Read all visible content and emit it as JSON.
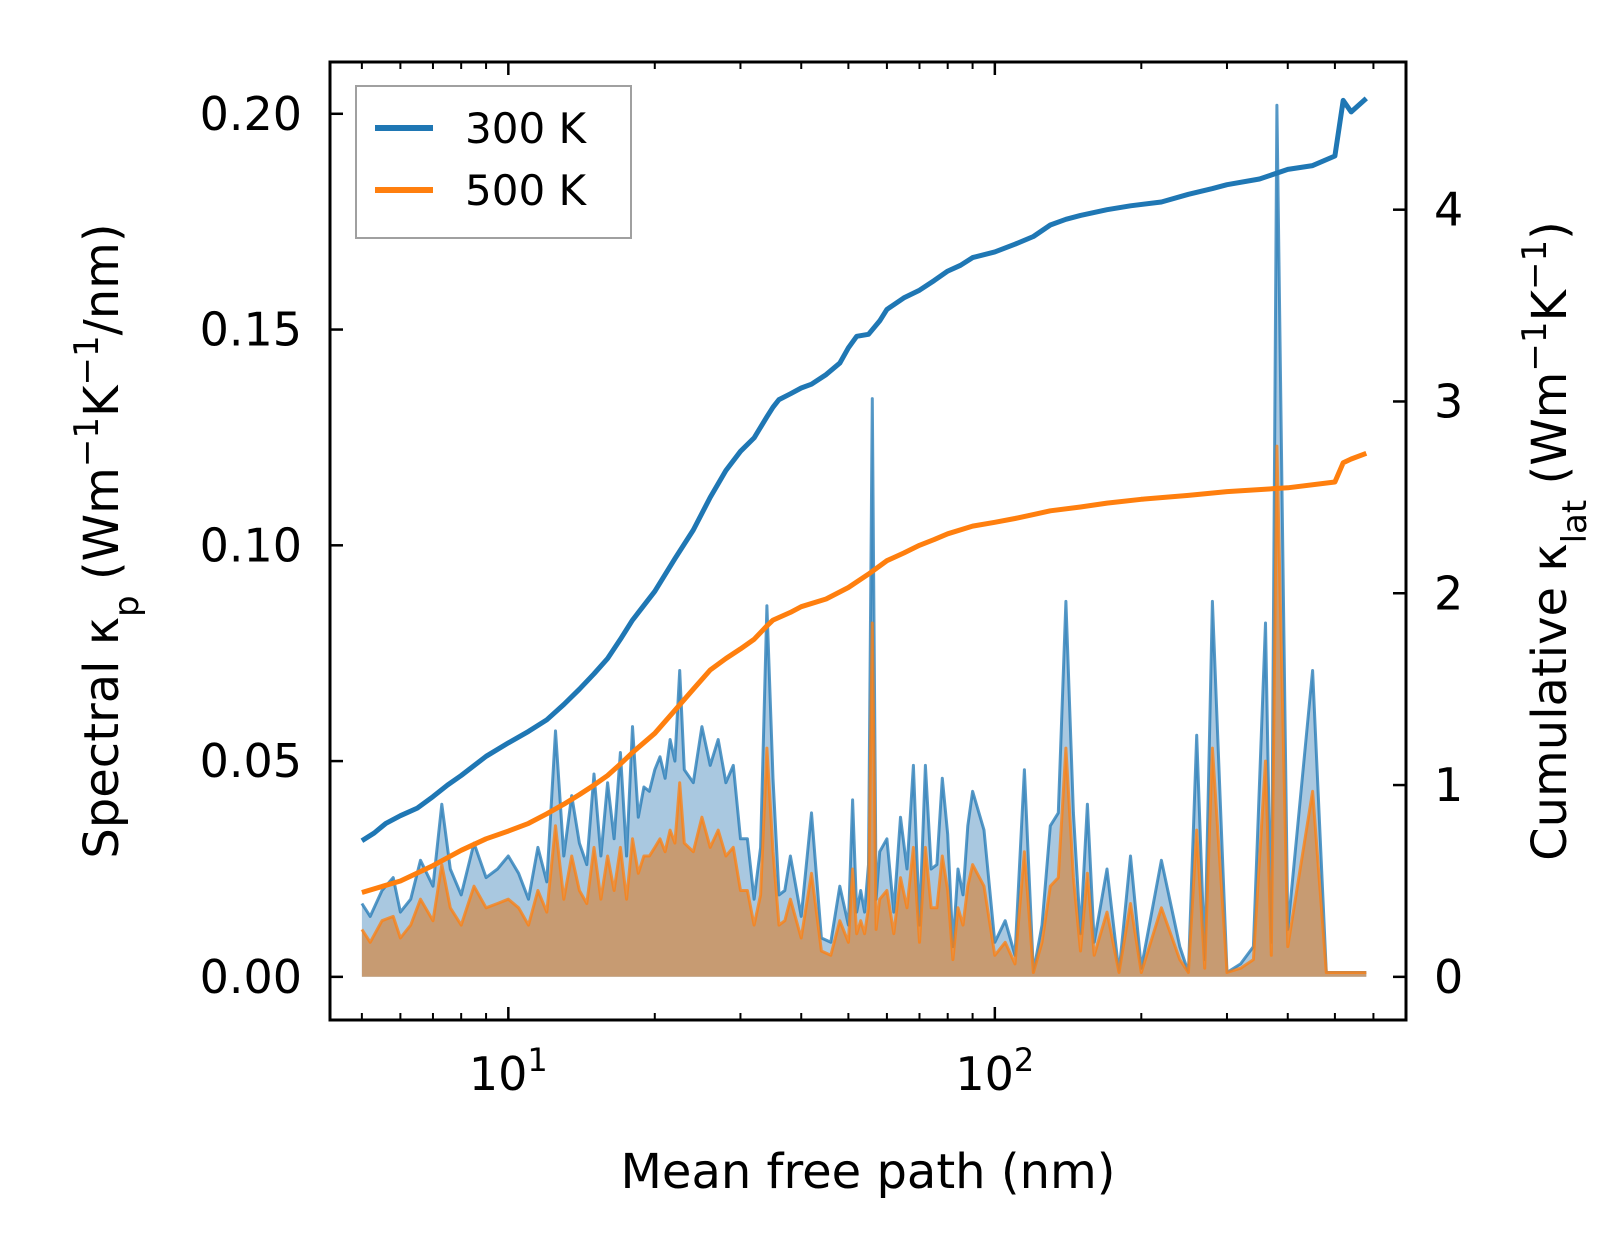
{
  "chart_data": {
    "type": "line",
    "xscale": "log",
    "xlim": [
      4.3,
      700
    ],
    "ylim_left": [
      -0.01,
      0.212
    ],
    "ylim_right": [
      -0.225,
      4.77
    ],
    "xlabel": "Mean free path (nm)",
    "ylabel_left": {
      "prefix": "Spectral κ",
      "sub": "p",
      "units_a": " (Wm",
      "sup1": "−1",
      "units_b": "K",
      "sup2": "−1",
      "units_c": "/nm)"
    },
    "ylabel_right": {
      "prefix": "Cumulative κ",
      "sub": "lat",
      "units_a": " (Wm",
      "sup1": "−1",
      "units_b": "K",
      "sup2": "−1",
      "units_c": ")"
    },
    "x_ticks": [
      {
        "base": "10",
        "exp": "1",
        "value": 10
      },
      {
        "base": "10",
        "exp": "2",
        "value": 100
      }
    ],
    "y_left_ticks": [
      "0.00",
      "0.05",
      "0.10",
      "0.15",
      "0.20"
    ],
    "y_left_tick_values": [
      0,
      0.05,
      0.1,
      0.15,
      0.2
    ],
    "y_right_ticks": [
      "0",
      "1",
      "2",
      "3",
      "4"
    ],
    "y_right_tick_values": [
      0,
      1,
      2,
      3,
      4
    ],
    "legend": {
      "position": "top-left",
      "entries": [
        {
          "label": "300 K",
          "color": "#1f77b4"
        },
        {
          "label": "500 K",
          "color": "#ff7f0e"
        }
      ]
    },
    "colors": {
      "series_300K": "#1f77b4",
      "series_500K": "#ff7f0e",
      "spectral_300K_fill": "#a9c8e0",
      "spectral_500K_fill": "#c8996c"
    },
    "cumulative_series": [
      {
        "name": "300 K",
        "x": [
          5,
          5.3,
          5.6,
          6,
          6.5,
          7,
          7.5,
          8,
          9,
          10,
          11,
          12,
          13,
          14,
          15,
          16,
          17,
          18,
          20,
          22,
          24,
          26,
          28,
          30,
          32,
          34,
          35,
          36,
          38,
          40,
          42,
          45,
          48,
          50,
          52,
          55,
          58,
          60,
          65,
          70,
          75,
          80,
          85,
          90,
          100,
          110,
          120,
          130,
          140,
          150,
          170,
          190,
          220,
          250,
          280,
          300,
          350,
          400,
          450,
          500,
          520,
          540,
          580
        ],
        "y": [
          0.71,
          0.75,
          0.8,
          0.84,
          0.88,
          0.94,
          1.0,
          1.05,
          1.15,
          1.22,
          1.28,
          1.34,
          1.42,
          1.5,
          1.58,
          1.66,
          1.76,
          1.86,
          2.01,
          2.18,
          2.33,
          2.5,
          2.64,
          2.74,
          2.81,
          2.92,
          2.97,
          3.01,
          3.04,
          3.07,
          3.09,
          3.14,
          3.2,
          3.28,
          3.34,
          3.35,
          3.42,
          3.48,
          3.54,
          3.58,
          3.63,
          3.68,
          3.71,
          3.75,
          3.78,
          3.82,
          3.86,
          3.92,
          3.95,
          3.97,
          4.0,
          4.02,
          4.04,
          4.08,
          4.11,
          4.13,
          4.16,
          4.21,
          4.23,
          4.28,
          4.57,
          4.51,
          4.58
        ]
      },
      {
        "name": "500 K",
        "x": [
          5,
          6,
          7,
          8,
          9,
          10,
          11,
          12,
          13,
          14,
          15,
          16,
          17,
          18,
          20,
          22,
          24,
          26,
          28,
          30,
          32,
          34,
          35,
          38,
          40,
          45,
          50,
          55,
          60,
          65,
          70,
          75,
          80,
          90,
          100,
          110,
          120,
          130,
          150,
          170,
          200,
          250,
          300,
          400,
          500,
          520,
          540,
          580
        ],
        "y": [
          0.44,
          0.5,
          0.58,
          0.66,
          0.72,
          0.76,
          0.8,
          0.85,
          0.9,
          0.95,
          1.0,
          1.05,
          1.11,
          1.17,
          1.27,
          1.39,
          1.5,
          1.6,
          1.66,
          1.71,
          1.76,
          1.83,
          1.86,
          1.9,
          1.93,
          1.97,
          2.03,
          2.1,
          2.17,
          2.21,
          2.25,
          2.28,
          2.31,
          2.35,
          2.37,
          2.39,
          2.41,
          2.43,
          2.45,
          2.47,
          2.49,
          2.51,
          2.53,
          2.55,
          2.58,
          2.68,
          2.7,
          2.73
        ]
      }
    ],
    "spectral_series": [
      {
        "name": "300 K",
        "x": [
          5,
          5.2,
          5.5,
          5.8,
          6,
          6.3,
          6.6,
          7,
          7.3,
          7.6,
          8,
          8.5,
          9,
          9.5,
          10,
          10.5,
          11,
          11.5,
          12,
          12.5,
          13,
          13.5,
          14,
          14.5,
          15,
          15.5,
          16,
          16.5,
          17,
          17.5,
          18,
          18.5,
          19,
          19.5,
          20,
          20.5,
          21,
          21.5,
          22,
          22.5,
          23,
          24,
          25,
          26,
          27,
          28,
          29,
          30,
          31,
          32,
          33,
          34,
          35,
          36,
          37,
          38,
          40,
          42,
          44,
          46,
          48,
          50,
          51,
          52,
          53,
          54,
          55,
          56,
          57,
          58,
          60,
          62,
          64,
          66,
          68,
          70,
          72,
          74,
          76,
          78,
          80,
          82,
          84,
          86,
          88,
          90,
          95,
          100,
          105,
          110,
          115,
          120,
          125,
          130,
          135,
          140,
          145,
          150,
          155,
          160,
          170,
          180,
          190,
          200,
          220,
          240,
          250,
          260,
          270,
          280,
          300,
          320,
          340,
          360,
          370,
          380,
          400,
          450,
          480,
          500,
          510,
          520,
          540,
          550,
          560,
          570,
          580
        ],
        "y": [
          0.017,
          0.014,
          0.02,
          0.023,
          0.015,
          0.018,
          0.027,
          0.021,
          0.04,
          0.025,
          0.019,
          0.031,
          0.023,
          0.025,
          0.028,
          0.024,
          0.018,
          0.03,
          0.022,
          0.057,
          0.028,
          0.042,
          0.031,
          0.026,
          0.047,
          0.028,
          0.045,
          0.032,
          0.052,
          0.028,
          0.058,
          0.037,
          0.044,
          0.043,
          0.048,
          0.051,
          0.046,
          0.055,
          0.05,
          0.071,
          0.048,
          0.045,
          0.058,
          0.049,
          0.055,
          0.045,
          0.049,
          0.032,
          0.032,
          0.018,
          0.03,
          0.086,
          0.046,
          0.019,
          0.02,
          0.028,
          0.014,
          0.038,
          0.009,
          0.008,
          0.021,
          0.012,
          0.041,
          0.015,
          0.02,
          0.015,
          0.026,
          0.134,
          0.018,
          0.029,
          0.032,
          0.015,
          0.037,
          0.025,
          0.049,
          0.012,
          0.049,
          0.025,
          0.026,
          0.046,
          0.033,
          0.007,
          0.025,
          0.019,
          0.035,
          0.043,
          0.034,
          0.008,
          0.013,
          0.005,
          0.048,
          0.001,
          0.012,
          0.035,
          0.038,
          0.087,
          0.038,
          0.01,
          0.04,
          0.008,
          0.025,
          0.001,
          0.028,
          0.002,
          0.027,
          0.007,
          0.001,
          0.056,
          0.004,
          0.087,
          0.001,
          0.003,
          0.007,
          0.082,
          0.008,
          0.202,
          0.011,
          0.071,
          0.001,
          0.001,
          0.001,
          0.001,
          0.001,
          0.001,
          0.001,
          0.001,
          0.001
        ]
      },
      {
        "name": "500 K",
        "x": [
          5,
          5.2,
          5.5,
          5.8,
          6,
          6.3,
          6.6,
          7,
          7.3,
          7.6,
          8,
          8.5,
          9,
          9.5,
          10,
          10.5,
          11,
          11.5,
          12,
          12.5,
          13,
          13.5,
          14,
          14.5,
          15,
          15.5,
          16,
          16.5,
          17,
          17.5,
          18,
          18.5,
          19,
          19.5,
          20,
          20.5,
          21,
          21.5,
          22,
          22.5,
          23,
          24,
          25,
          26,
          27,
          28,
          29,
          30,
          31,
          32,
          33,
          34,
          35,
          36,
          37,
          38,
          40,
          42,
          44,
          46,
          48,
          50,
          51,
          52,
          53,
          54,
          55,
          56,
          57,
          58,
          60,
          62,
          64,
          66,
          68,
          70,
          72,
          74,
          76,
          78,
          80,
          82,
          84,
          86,
          88,
          90,
          95,
          100,
          105,
          110,
          115,
          120,
          125,
          130,
          135,
          140,
          145,
          150,
          155,
          160,
          170,
          180,
          190,
          200,
          220,
          240,
          250,
          260,
          270,
          280,
          300,
          320,
          340,
          360,
          370,
          380,
          400,
          450,
          480,
          500,
          510,
          520,
          540,
          550,
          560,
          570,
          580
        ],
        "y": [
          0.011,
          0.008,
          0.013,
          0.014,
          0.009,
          0.012,
          0.018,
          0.013,
          0.026,
          0.016,
          0.012,
          0.021,
          0.016,
          0.017,
          0.018,
          0.016,
          0.012,
          0.02,
          0.015,
          0.035,
          0.018,
          0.028,
          0.02,
          0.017,
          0.03,
          0.018,
          0.028,
          0.02,
          0.03,
          0.018,
          0.032,
          0.024,
          0.028,
          0.028,
          0.03,
          0.032,
          0.029,
          0.034,
          0.031,
          0.045,
          0.031,
          0.029,
          0.037,
          0.03,
          0.034,
          0.028,
          0.03,
          0.02,
          0.02,
          0.012,
          0.019,
          0.053,
          0.029,
          0.012,
          0.013,
          0.018,
          0.009,
          0.024,
          0.006,
          0.005,
          0.013,
          0.008,
          0.025,
          0.01,
          0.013,
          0.01,
          0.016,
          0.082,
          0.011,
          0.018,
          0.02,
          0.01,
          0.023,
          0.016,
          0.03,
          0.008,
          0.03,
          0.016,
          0.016,
          0.028,
          0.02,
          0.004,
          0.016,
          0.012,
          0.021,
          0.026,
          0.021,
          0.005,
          0.008,
          0.003,
          0.029,
          0.001,
          0.008,
          0.021,
          0.023,
          0.053,
          0.023,
          0.006,
          0.024,
          0.005,
          0.015,
          0.001,
          0.017,
          0.001,
          0.016,
          0.004,
          0.001,
          0.034,
          0.002,
          0.053,
          0.001,
          0.002,
          0.004,
          0.05,
          0.005,
          0.123,
          0.007,
          0.043,
          0.001,
          0.001,
          0.001,
          0.001,
          0.001,
          0.001,
          0.001,
          0.001,
          0.001
        ]
      }
    ]
  }
}
